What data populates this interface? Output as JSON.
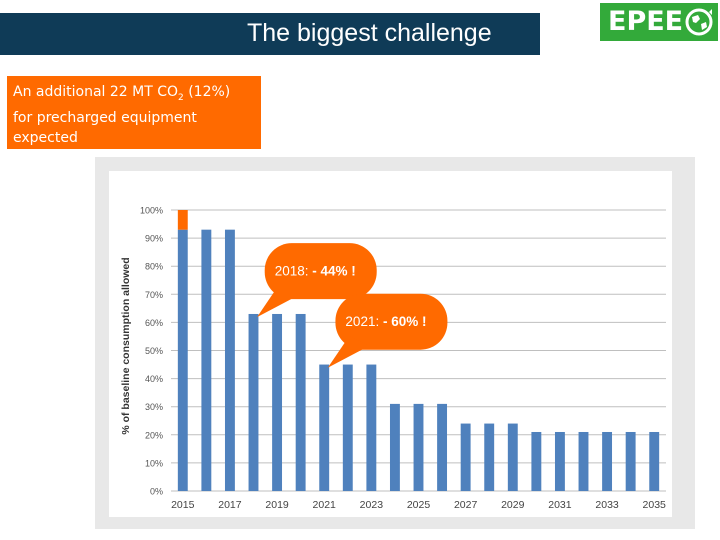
{
  "header": {
    "title": "The biggest challenge",
    "logo_text": "EPEE",
    "logo_icon": "globe-recycle-icon"
  },
  "note": {
    "line1_pre": "An additional  22  MT CO",
    "line1_sub": "2",
    "line1_post": " (12%)",
    "line2": "for precharged equipment",
    "line3": "expected"
  },
  "colors": {
    "title_bar": "#0f3b57",
    "logo_bg": "#33aa3a",
    "accent_orange": "#ff6a00",
    "bar_blue": "#4f81bd"
  },
  "chart_data": {
    "type": "bar",
    "ylabel": "% of baseline consumption allowed",
    "yticks": [
      "0%",
      "10%",
      "20%",
      "30%",
      "40%",
      "50%",
      "60%",
      "70%",
      "80%",
      "90%",
      "100%"
    ],
    "ylim": [
      0,
      100
    ],
    "grid": true,
    "categories": [
      2015,
      2016,
      2017,
      2018,
      2019,
      2020,
      2021,
      2022,
      2023,
      2024,
      2025,
      2026,
      2027,
      2028,
      2029,
      2030,
      2031,
      2032,
      2033,
      2034,
      2035
    ],
    "xtick_labels": [
      "2015",
      "2017",
      "2019",
      "2021",
      "2023",
      "2025",
      "2027",
      "2029",
      "2031",
      "2033",
      "2035"
    ],
    "series": [
      {
        "values": [
          93,
          93,
          93,
          63,
          63,
          63,
          45,
          45,
          45,
          31,
          31,
          31,
          24,
          24,
          24,
          21,
          21,
          21,
          21,
          21,
          21
        ],
        "color": "#4f81bd"
      },
      {
        "values": [
          7,
          0,
          0,
          0,
          0,
          0,
          0,
          0,
          0,
          0,
          0,
          0,
          0,
          0,
          0,
          0,
          0,
          0,
          0,
          0,
          0
        ],
        "color": "#ff6a00"
      }
    ],
    "annotations": [
      {
        "label_plain": "2018: ",
        "label_bold": "- 44% !",
        "year": 2018,
        "value": 63
      },
      {
        "label_plain": "2021: ",
        "label_bold": "- 60% !",
        "year": 2021,
        "value": 45
      }
    ]
  }
}
